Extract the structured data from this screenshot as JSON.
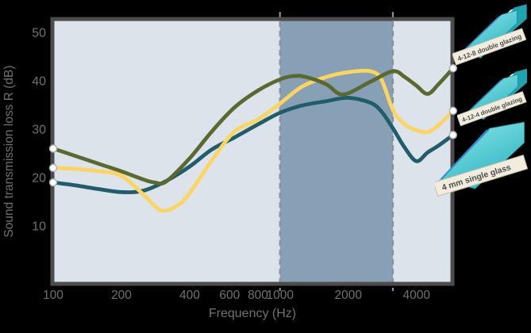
{
  "chart_data": {
    "type": "line",
    "title": "",
    "xlabel": "Frequency (Hz)",
    "ylabel": "Sound transmission loss R (dB)",
    "x_scale": "log",
    "xlim": [
      100,
      5800
    ],
    "ylim": [
      0,
      52
    ],
    "grid": false,
    "x_ticks": [
      100,
      200,
      400,
      600,
      800,
      1000,
      2000,
      4000
    ],
    "y_ticks": [
      50,
      40,
      30,
      20,
      10
    ],
    "highlight_band_hz": [
      1000,
      3150
    ],
    "legend_position": "right",
    "colors": {
      "plot_bg": "#dce3eb",
      "band_bg": "#87a0b5",
      "frame": "#4c4c4c",
      "dashed_line": "#8b9198",
      "axis_text": "#6e7173",
      "marker_fill": "#ffffff",
      "marker_stroke": "#a9aeb4"
    },
    "series": [
      {
        "name": "4-12-8 double glazing",
        "color": "#5a6a2e",
        "points": [
          [
            100,
            26
          ],
          [
            125,
            24.5
          ],
          [
            160,
            22.8
          ],
          [
            200,
            21.3
          ],
          [
            250,
            19.6
          ],
          [
            280,
            19
          ],
          [
            315,
            19.2
          ],
          [
            400,
            24
          ],
          [
            500,
            29.5
          ],
          [
            630,
            34.5
          ],
          [
            800,
            38
          ],
          [
            1000,
            40.3
          ],
          [
            1150,
            41
          ],
          [
            1300,
            40.8
          ],
          [
            1600,
            39.3
          ],
          [
            1900,
            37.2
          ],
          [
            2500,
            39.8
          ],
          [
            3150,
            42
          ],
          [
            3550,
            40.8
          ],
          [
            4000,
            39
          ],
          [
            4480,
            37.3
          ],
          [
            5000,
            39.3
          ],
          [
            5800,
            42.6
          ]
        ]
      },
      {
        "name": "4-12-4 double glazing",
        "color": "#fbd55e",
        "points": [
          [
            100,
            22
          ],
          [
            125,
            21.8
          ],
          [
            160,
            21.3
          ],
          [
            200,
            20.4
          ],
          [
            250,
            16.5
          ],
          [
            300,
            13.2
          ],
          [
            355,
            14.3
          ],
          [
            400,
            16.8
          ],
          [
            500,
            23.5
          ],
          [
            630,
            29.5
          ],
          [
            800,
            32
          ],
          [
            1000,
            35.3
          ],
          [
            1250,
            38.8
          ],
          [
            1600,
            40.8
          ],
          [
            2000,
            41.8
          ],
          [
            2500,
            42
          ],
          [
            2800,
            40.3
          ],
          [
            3150,
            34
          ],
          [
            3550,
            31
          ],
          [
            4000,
            29.8
          ],
          [
            4480,
            29.4
          ],
          [
            5000,
            30.8
          ],
          [
            5800,
            33.8
          ]
        ]
      },
      {
        "name": "4 mm single glass",
        "color": "#1f5d6b",
        "points": [
          [
            100,
            19
          ],
          [
            125,
            18.4
          ],
          [
            160,
            17.6
          ],
          [
            200,
            17
          ],
          [
            250,
            17.3
          ],
          [
            315,
            19.3
          ],
          [
            400,
            22.3
          ],
          [
            500,
            25.8
          ],
          [
            630,
            28.3
          ],
          [
            800,
            31
          ],
          [
            1000,
            33.4
          ],
          [
            1250,
            34.9
          ],
          [
            1600,
            35.8
          ],
          [
            2000,
            36.5
          ],
          [
            2500,
            35.5
          ],
          [
            2800,
            33.7
          ],
          [
            3150,
            30.2
          ],
          [
            3550,
            26.2
          ],
          [
            4000,
            23.4
          ],
          [
            4480,
            25.2
          ],
          [
            5000,
            26.6
          ],
          [
            5800,
            28.8
          ]
        ]
      }
    ]
  },
  "legend": {
    "items": [
      {
        "label": "4-12-8 double glazing",
        "glazing": "double"
      },
      {
        "label": "4-12-4 double glazing",
        "glazing": "double"
      },
      {
        "label": "4 mm single glass",
        "glazing": "single"
      }
    ]
  }
}
